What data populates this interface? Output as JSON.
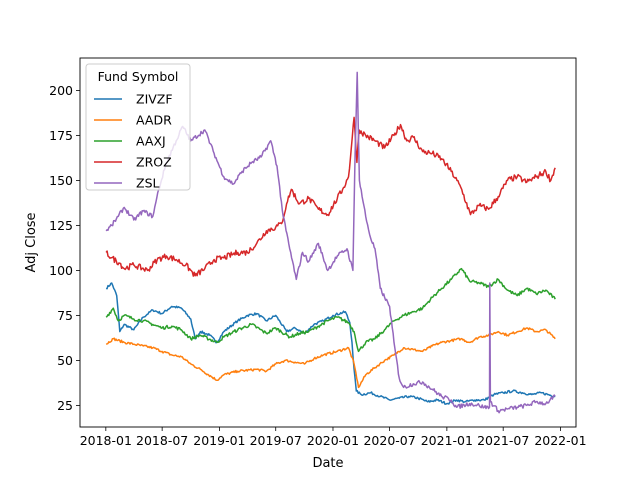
{
  "chart_data": {
    "type": "line",
    "title": "",
    "xlabel": "Date",
    "ylabel": "Adj Close",
    "x_ticks": [
      "2018-01",
      "2018-07",
      "2019-01",
      "2019-07",
      "2020-01",
      "2020-07",
      "2021-01",
      "2021-07",
      "2022-01"
    ],
    "y_ticks": [
      25,
      50,
      75,
      100,
      125,
      150,
      175,
      200
    ],
    "xlim": [
      "2017-10-10",
      "2022-02-20"
    ],
    "ylim": [
      13,
      218
    ],
    "grid": false,
    "legend": {
      "title": "Fund Symbol",
      "placement": "top-left"
    },
    "series": [
      {
        "name": "ZIVZF",
        "color": "#1f77b4",
        "points": [
          [
            "2018-01-02",
            90
          ],
          [
            "2018-01-20",
            93
          ],
          [
            "2018-02-05",
            86
          ],
          [
            "2018-02-15",
            66
          ],
          [
            "2018-03-01",
            70
          ],
          [
            "2018-04-01",
            67
          ],
          [
            "2018-05-01",
            74
          ],
          [
            "2018-06-01",
            78
          ],
          [
            "2018-07-01",
            76
          ],
          [
            "2018-08-01",
            80
          ],
          [
            "2018-09-01",
            79
          ],
          [
            "2018-10-01",
            73
          ],
          [
            "2018-10-15",
            62
          ],
          [
            "2018-11-01",
            66
          ],
          [
            "2018-12-01",
            64
          ],
          [
            "2018-12-24",
            60
          ],
          [
            "2019-01-15",
            66
          ],
          [
            "2019-03-01",
            72
          ],
          [
            "2019-04-01",
            75
          ],
          [
            "2019-05-01",
            76
          ],
          [
            "2019-06-01",
            72
          ],
          [
            "2019-07-01",
            75
          ],
          [
            "2019-08-05",
            66
          ],
          [
            "2019-09-01",
            68
          ],
          [
            "2019-10-01",
            65
          ],
          [
            "2019-11-01",
            70
          ],
          [
            "2019-12-01",
            72
          ],
          [
            "2020-01-01",
            75
          ],
          [
            "2020-02-10",
            77
          ],
          [
            "2020-02-24",
            71
          ],
          [
            "2020-03-02",
            60
          ],
          [
            "2020-03-09",
            45
          ],
          [
            "2020-03-16",
            33
          ],
          [
            "2020-04-01",
            31
          ],
          [
            "2020-05-01",
            32
          ],
          [
            "2020-06-01",
            30
          ],
          [
            "2020-07-01",
            28
          ],
          [
            "2020-08-01",
            29
          ],
          [
            "2020-09-01",
            30
          ],
          [
            "2020-10-01",
            29
          ],
          [
            "2020-11-01",
            27
          ],
          [
            "2020-12-01",
            28
          ],
          [
            "2021-01-01",
            26
          ],
          [
            "2021-02-01",
            28
          ],
          [
            "2021-03-01",
            27
          ],
          [
            "2021-04-01",
            28
          ],
          [
            "2021-05-01",
            28
          ],
          [
            "2021-06-01",
            31
          ],
          [
            "2021-07-01",
            32
          ],
          [
            "2021-08-01",
            33
          ],
          [
            "2021-09-01",
            32
          ],
          [
            "2021-10-01",
            31
          ],
          [
            "2021-11-01",
            32
          ],
          [
            "2021-12-15",
            30
          ]
        ]
      },
      {
        "name": "AADR",
        "color": "#ff7f0e",
        "points": [
          [
            "2018-01-02",
            59
          ],
          [
            "2018-01-25",
            62
          ],
          [
            "2018-03-01",
            60
          ],
          [
            "2018-04-01",
            59
          ],
          [
            "2018-05-01",
            58
          ],
          [
            "2018-06-01",
            57
          ],
          [
            "2018-07-01",
            55
          ],
          [
            "2018-08-01",
            53
          ],
          [
            "2018-09-01",
            52
          ],
          [
            "2018-10-01",
            48
          ],
          [
            "2018-11-01",
            45
          ],
          [
            "2018-12-24",
            39
          ],
          [
            "2019-01-15",
            42
          ],
          [
            "2019-03-01",
            44
          ],
          [
            "2019-05-01",
            45
          ],
          [
            "2019-06-01",
            44
          ],
          [
            "2019-07-01",
            48
          ],
          [
            "2019-08-01",
            50
          ],
          [
            "2019-09-01",
            49
          ],
          [
            "2019-10-01",
            48
          ],
          [
            "2019-11-01",
            51
          ],
          [
            "2019-12-01",
            53
          ],
          [
            "2020-01-15",
            55
          ],
          [
            "2020-02-20",
            57
          ],
          [
            "2020-03-09",
            48
          ],
          [
            "2020-03-23",
            35
          ],
          [
            "2020-04-15",
            42
          ],
          [
            "2020-05-15",
            46
          ],
          [
            "2020-06-15",
            50
          ],
          [
            "2020-07-15",
            53
          ],
          [
            "2020-08-15",
            57
          ],
          [
            "2020-09-15",
            56
          ],
          [
            "2020-10-15",
            55
          ],
          [
            "2020-11-15",
            58
          ],
          [
            "2020-12-15",
            60
          ],
          [
            "2021-01-15",
            61
          ],
          [
            "2021-02-15",
            62
          ],
          [
            "2021-03-15",
            60
          ],
          [
            "2021-04-15",
            63
          ],
          [
            "2021-05-15",
            64
          ],
          [
            "2021-06-15",
            66
          ],
          [
            "2021-07-15",
            64
          ],
          [
            "2021-08-15",
            66
          ],
          [
            "2021-09-15",
            68
          ],
          [
            "2021-10-15",
            66
          ],
          [
            "2021-11-15",
            67
          ],
          [
            "2021-12-15",
            62
          ]
        ]
      },
      {
        "name": "AAXJ",
        "color": "#2ca02c",
        "points": [
          [
            "2018-01-02",
            74
          ],
          [
            "2018-01-25",
            79
          ],
          [
            "2018-02-10",
            72
          ],
          [
            "2018-03-01",
            75
          ],
          [
            "2018-04-01",
            73
          ],
          [
            "2018-05-01",
            72
          ],
          [
            "2018-06-01",
            70
          ],
          [
            "2018-07-01",
            68
          ],
          [
            "2018-08-01",
            69
          ],
          [
            "2018-09-01",
            67
          ],
          [
            "2018-10-01",
            62
          ],
          [
            "2018-11-01",
            64
          ],
          [
            "2018-12-24",
            60
          ],
          [
            "2019-01-15",
            63
          ],
          [
            "2019-03-01",
            67
          ],
          [
            "2019-04-15",
            70
          ],
          [
            "2019-06-01",
            65
          ],
          [
            "2019-07-01",
            68
          ],
          [
            "2019-08-15",
            63
          ],
          [
            "2019-09-15",
            65
          ],
          [
            "2019-10-15",
            66
          ],
          [
            "2019-11-15",
            69
          ],
          [
            "2019-12-15",
            72
          ],
          [
            "2020-01-15",
            74
          ],
          [
            "2020-02-20",
            71
          ],
          [
            "2020-03-09",
            66
          ],
          [
            "2020-03-23",
            55
          ],
          [
            "2020-04-15",
            60
          ],
          [
            "2020-05-15",
            62
          ],
          [
            "2020-06-15",
            67
          ],
          [
            "2020-07-15",
            72
          ],
          [
            "2020-08-15",
            75
          ],
          [
            "2020-09-15",
            77
          ],
          [
            "2020-10-15",
            79
          ],
          [
            "2020-11-15",
            85
          ],
          [
            "2020-12-15",
            90
          ],
          [
            "2021-01-15",
            95
          ],
          [
            "2021-02-17",
            101
          ],
          [
            "2021-03-15",
            94
          ],
          [
            "2021-04-15",
            93
          ],
          [
            "2021-05-15",
            91
          ],
          [
            "2021-06-15",
            95
          ],
          [
            "2021-07-15",
            89
          ],
          [
            "2021-08-15",
            86
          ],
          [
            "2021-09-15",
            90
          ],
          [
            "2021-10-15",
            87
          ],
          [
            "2021-11-15",
            89
          ],
          [
            "2021-12-15",
            84
          ]
        ]
      },
      {
        "name": "ZROZ",
        "color": "#d62728",
        "points": [
          [
            "2018-01-02",
            110
          ],
          [
            "2018-01-20",
            107
          ],
          [
            "2018-02-15",
            104
          ],
          [
            "2018-03-01",
            101
          ],
          [
            "2018-04-01",
            103
          ],
          [
            "2018-05-15",
            100
          ],
          [
            "2018-06-15",
            106
          ],
          [
            "2018-07-15",
            108
          ],
          [
            "2018-08-15",
            106
          ],
          [
            "2018-09-15",
            103
          ],
          [
            "2018-10-15",
            97
          ],
          [
            "2018-11-15",
            101
          ],
          [
            "2018-12-15",
            106
          ],
          [
            "2019-01-15",
            107
          ],
          [
            "2019-03-01",
            110
          ],
          [
            "2019-04-01",
            110
          ],
          [
            "2019-05-01",
            115
          ],
          [
            "2019-06-01",
            122
          ],
          [
            "2019-07-01",
            124
          ],
          [
            "2019-07-20",
            126
          ],
          [
            "2019-08-05",
            137
          ],
          [
            "2019-08-20",
            145
          ],
          [
            "2019-09-15",
            137
          ],
          [
            "2019-10-15",
            140
          ],
          [
            "2019-11-15",
            134
          ],
          [
            "2019-12-15",
            131
          ],
          [
            "2020-01-15",
            140
          ],
          [
            "2020-02-01",
            145
          ],
          [
            "2020-02-20",
            152
          ],
          [
            "2020-03-09",
            185
          ],
          [
            "2020-03-18",
            160
          ],
          [
            "2020-03-25",
            178
          ],
          [
            "2020-04-15",
            175
          ],
          [
            "2020-05-15",
            172
          ],
          [
            "2020-06-15",
            168
          ],
          [
            "2020-07-15",
            175
          ],
          [
            "2020-08-05",
            181
          ],
          [
            "2020-08-25",
            172
          ],
          [
            "2020-09-15",
            174
          ],
          [
            "2020-10-15",
            166
          ],
          [
            "2020-11-15",
            165
          ],
          [
            "2020-12-15",
            162
          ],
          [
            "2021-01-15",
            155
          ],
          [
            "2021-02-15",
            146
          ],
          [
            "2021-03-18",
            131
          ],
          [
            "2021-04-15",
            136
          ],
          [
            "2021-05-15",
            134
          ],
          [
            "2021-06-15",
            141
          ],
          [
            "2021-07-15",
            150
          ],
          [
            "2021-08-15",
            152
          ],
          [
            "2021-09-15",
            149
          ],
          [
            "2021-10-15",
            152
          ],
          [
            "2021-11-15",
            155
          ],
          [
            "2021-12-01",
            150
          ],
          [
            "2021-12-15",
            157
          ]
        ]
      },
      {
        "name": "ZSL",
        "color": "#9467bd",
        "points": [
          [
            "2018-01-02",
            122
          ],
          [
            "2018-01-20",
            125
          ],
          [
            "2018-02-10",
            130
          ],
          [
            "2018-03-01",
            135
          ],
          [
            "2018-04-01",
            128
          ],
          [
            "2018-05-01",
            133
          ],
          [
            "2018-06-01",
            130
          ],
          [
            "2018-06-20",
            145
          ],
          [
            "2018-07-15",
            160
          ],
          [
            "2018-08-15",
            172
          ],
          [
            "2018-09-05",
            180
          ],
          [
            "2018-10-01",
            172
          ],
          [
            "2018-11-15",
            178
          ],
          [
            "2018-12-15",
            165
          ],
          [
            "2019-01-15",
            152
          ],
          [
            "2019-02-15",
            148
          ],
          [
            "2019-03-15",
            155
          ],
          [
            "2019-04-15",
            160
          ],
          [
            "2019-05-15",
            163
          ],
          [
            "2019-06-15",
            172
          ],
          [
            "2019-07-05",
            158
          ],
          [
            "2019-07-25",
            130
          ],
          [
            "2019-08-15",
            112
          ],
          [
            "2019-09-05",
            95
          ],
          [
            "2019-09-25",
            110
          ],
          [
            "2019-10-15",
            105
          ],
          [
            "2019-11-15",
            115
          ],
          [
            "2019-12-15",
            100
          ],
          [
            "2020-01-15",
            108
          ],
          [
            "2020-02-15",
            112
          ],
          [
            "2020-03-05",
            100
          ],
          [
            "2020-03-12",
            165
          ],
          [
            "2020-03-19",
            210
          ],
          [
            "2020-03-26",
            150
          ],
          [
            "2020-04-15",
            130
          ],
          [
            "2020-05-01",
            118
          ],
          [
            "2020-05-15",
            112
          ],
          [
            "2020-06-01",
            90
          ],
          [
            "2020-06-15",
            85
          ],
          [
            "2020-07-01",
            80
          ],
          [
            "2020-07-15",
            60
          ],
          [
            "2020-08-01",
            40
          ],
          [
            "2020-08-15",
            35
          ],
          [
            "2020-09-15",
            37
          ],
          [
            "2020-10-15",
            38
          ],
          [
            "2020-11-15",
            34
          ],
          [
            "2020-12-15",
            30
          ],
          [
            "2021-01-15",
            28
          ],
          [
            "2021-02-01",
            24
          ],
          [
            "2021-03-15",
            26
          ],
          [
            "2021-04-15",
            25
          ],
          [
            "2021-05-01",
            24
          ],
          [
            "2021-05-18",
            24
          ],
          [
            "2021-05-19",
            93
          ],
          [
            "2021-05-21",
            27
          ],
          [
            "2021-06-15",
            22
          ],
          [
            "2021-07-15",
            23
          ],
          [
            "2021-08-15",
            24
          ],
          [
            "2021-09-15",
            25
          ],
          [
            "2021-10-15",
            27
          ],
          [
            "2021-11-15",
            26
          ],
          [
            "2021-12-15",
            30
          ]
        ]
      }
    ]
  }
}
